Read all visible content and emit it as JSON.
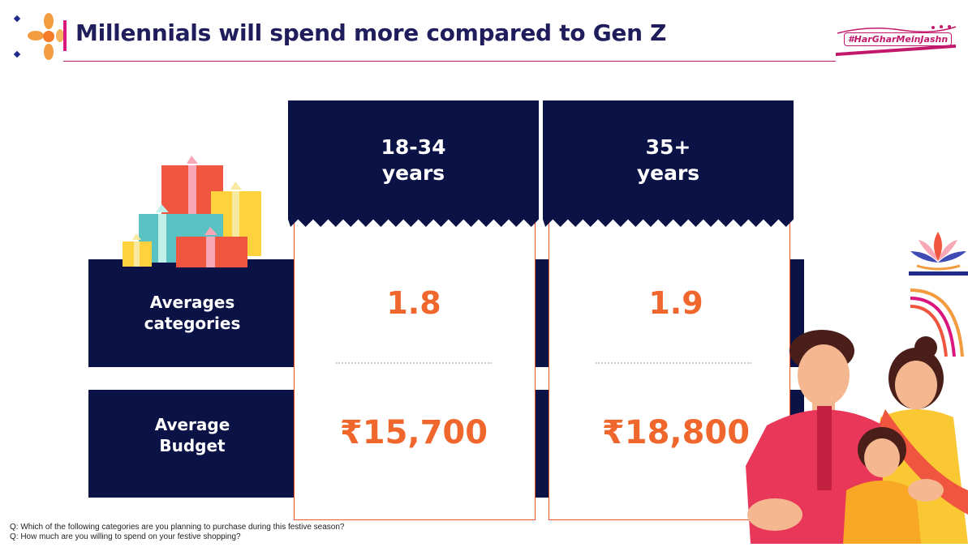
{
  "header": {
    "title": "Millennials will spend more compared to Gen Z",
    "hashtag": "#HarGharMeinJashn"
  },
  "columns": [
    {
      "line1": "18-34",
      "line2": "years"
    },
    {
      "line1": "35+",
      "line2": "years"
    }
  ],
  "rows": [
    {
      "label_line1": "Averages",
      "label_line2": "categories",
      "values": [
        "1.8",
        "1.9"
      ]
    },
    {
      "label_line1": "Average",
      "label_line2": "Budget",
      "values": [
        "₹15,700",
        "₹18,800"
      ]
    }
  ],
  "footnotes": [
    "Q: Which of the following categories are you planning to purchase during this festive season?",
    "Q: How much are you willing to spend on your festive shopping?"
  ],
  "colors": {
    "navy": "#0b1246",
    "orange": "#f0672d",
    "magenta": "#c2186c",
    "title": "#1f1d5c"
  }
}
